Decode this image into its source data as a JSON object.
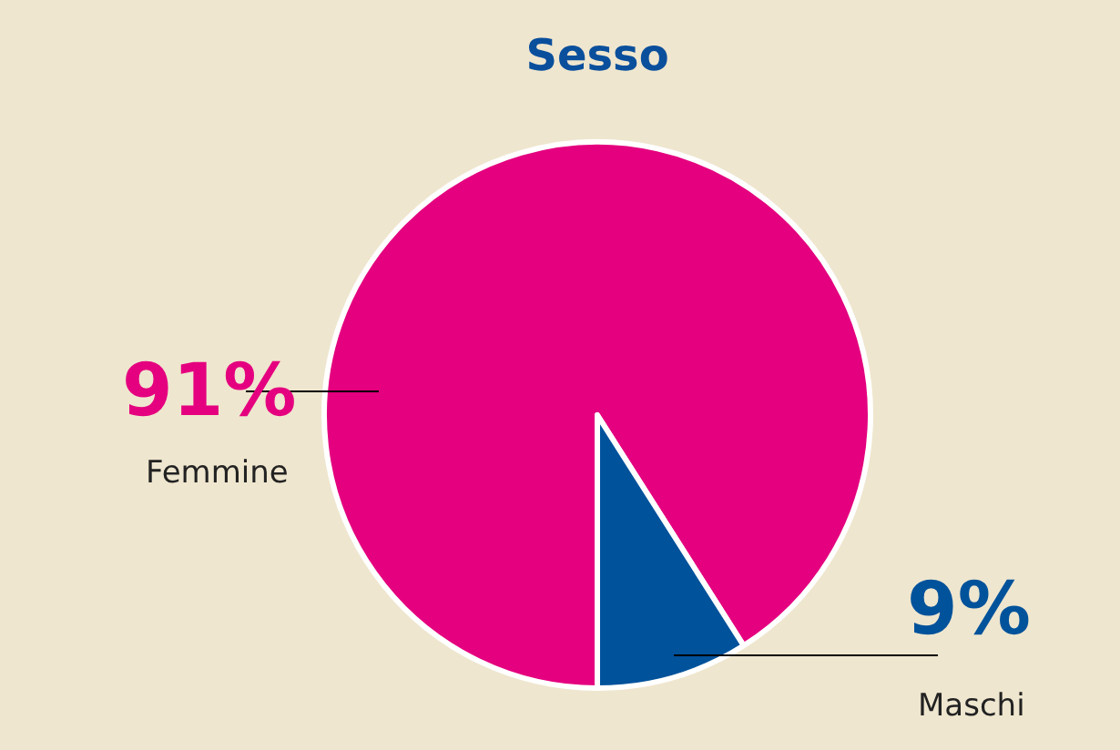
{
  "chart_data": {
    "type": "pie",
    "title": "Sesso",
    "categories": [
      "Femmine",
      "Maschi"
    ],
    "values": [
      91,
      9
    ],
    "value_labels": [
      "91%",
      "9%"
    ],
    "colors": [
      "#e4007f",
      "#00529b"
    ],
    "legend": false
  }
}
